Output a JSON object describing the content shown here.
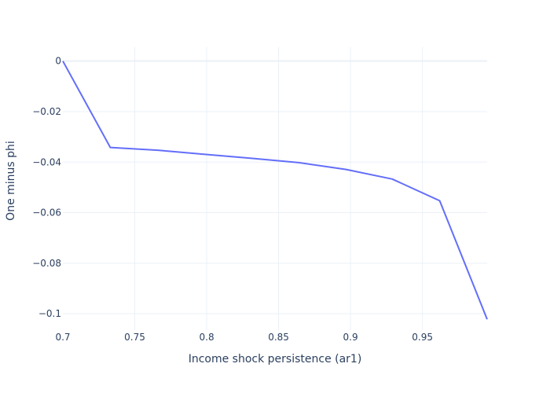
{
  "chart_data": {
    "type": "line",
    "xlabel": "Income shock persistence (ar1)",
    "ylabel": "One minus phi",
    "xlim": [
      0.7,
      0.995
    ],
    "ylim": [
      -0.1065,
      0.0055
    ],
    "x_ticks": [
      0.7,
      0.75,
      0.8,
      0.85,
      0.9,
      0.95
    ],
    "x_tick_labels": [
      "0.7",
      "0.75",
      "0.8",
      "0.85",
      "0.9",
      "0.95"
    ],
    "y_ticks": [
      0,
      -0.02,
      -0.04,
      -0.06,
      -0.08,
      -0.1
    ],
    "y_tick_labels": [
      "0",
      "−0.02",
      "−0.04",
      "−0.06",
      "−0.08",
      "−0.1"
    ],
    "grid": true,
    "line_color": "#636efa",
    "series": [
      {
        "x": [
          0.7,
          0.733,
          0.766,
          0.798,
          0.831,
          0.864,
          0.897,
          0.929,
          0.962,
          0.995
        ],
        "y": [
          0.0,
          -0.0342,
          -0.0353,
          -0.0369,
          -0.0385,
          -0.0402,
          -0.0429,
          -0.0467,
          -0.0553,
          -0.1022
        ]
      }
    ]
  }
}
